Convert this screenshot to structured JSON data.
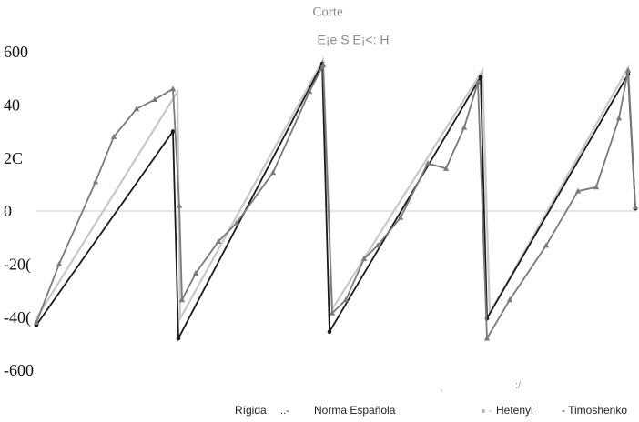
{
  "chart_data": {
    "type": "line",
    "title": "Corte",
    "subtitle": "E¡e S   E¡<: H",
    "xlim": [
      0,
      660
    ],
    "ylim": [
      -600,
      600
    ],
    "yticks": [
      {
        "value": 600,
        "label": "600"
      },
      {
        "value": 400,
        "label": "40"
      },
      {
        "value": 200,
        "label": "2C"
      },
      0,
      {
        "value": -200,
        "label": "-20("
      },
      {
        "value": -400,
        "label": "-40("
      },
      {
        "value": -600,
        "label": "-600"
      }
    ],
    "series": [
      {
        "name": "Rígida",
        "color": "#c8c8c8",
        "x": [
          0,
          155,
          158,
          315,
          325,
          490,
          498,
          650,
          658
        ],
        "values": [
          -405,
          450,
          -405,
          570,
          -370,
          530,
          -385,
          540,
          5
        ]
      },
      {
        "name": "Norma Española",
        "color": "#1a1a1a",
        "marker": "dot",
        "x": [
          0,
          150,
          156,
          314,
          322,
          488,
          495,
          650,
          658
        ],
        "values": [
          -430,
          300,
          -480,
          555,
          -455,
          505,
          -405,
          515,
          10
        ]
      },
      {
        "name": "Hetenyl",
        "color": "#7a7a7a",
        "marker": "triangle",
        "x": [
          0,
          25,
          65,
          85,
          110,
          130,
          150,
          157,
          160,
          175,
          200,
          220,
          260,
          300,
          315,
          325,
          340,
          360,
          375,
          400,
          430,
          450,
          470,
          485,
          495,
          520,
          560,
          595,
          615,
          640,
          650,
          658
        ],
        "values": [
          -420,
          -200,
          110,
          280,
          385,
          420,
          460,
          20,
          -335,
          -235,
          -115,
          -45,
          145,
          450,
          550,
          -385,
          -335,
          -180,
          -130,
          -25,
          180,
          160,
          315,
          485,
          -480,
          -335,
          -130,
          75,
          90,
          350,
          530,
          15
        ]
      }
    ],
    "annotations": [
      "...-",
      "- Timoshenko",
      "'",
      ":/"
    ]
  }
}
